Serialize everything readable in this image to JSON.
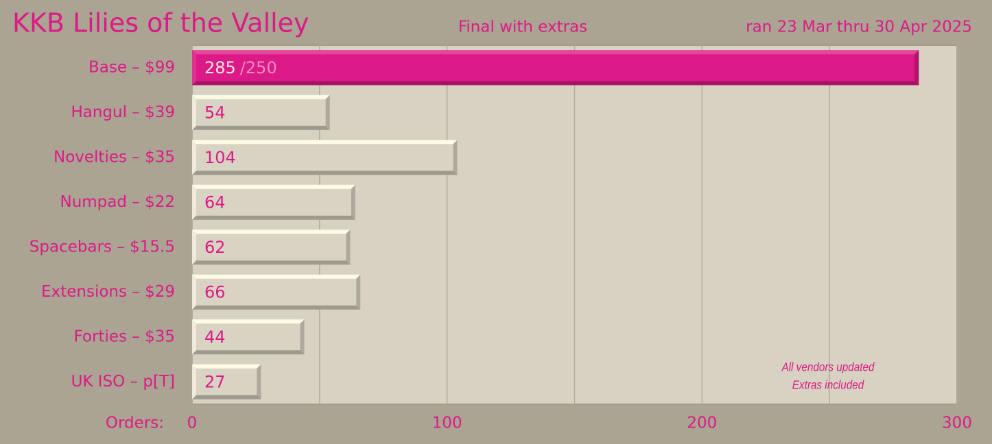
{
  "chart_data": {
    "type": "bar",
    "orientation": "horizontal",
    "title": "KKB Lilies of the Valley",
    "subtitle": "Final with extras",
    "date_range": "ran 23 Mar thru 30 Apr 2025",
    "x_label": "Orders:",
    "categories": [
      "Base – $99",
      "Hangul – $39",
      "Novelties – $35",
      "Numpad – $22",
      "Spacebars – $15.5",
      "Extensions – $29",
      "Forties – $35",
      "UK ISO – p[T]"
    ],
    "values": [
      285,
      54,
      104,
      64,
      62,
      66,
      44,
      27
    ],
    "colors": [
      "#dc1a87",
      "#d9d3c3",
      "#d9d3c3",
      "#d9d3c3",
      "#d9d3c3",
      "#d9d3c3",
      "#d9d3c3",
      "#d9d3c3"
    ],
    "target_label": "/250",
    "xlim": [
      0,
      300
    ],
    "xticks": [
      0,
      100,
      200,
      300
    ],
    "minor_grid": [
      50,
      150,
      250
    ],
    "grid": true,
    "annotation": [
      "All vendors updated",
      "Extras included"
    ]
  }
}
